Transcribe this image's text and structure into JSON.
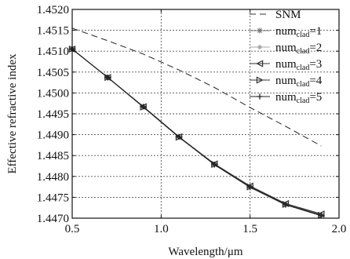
{
  "chart_data": {
    "type": "line",
    "title": "",
    "xlabel": "Wavelength/μm",
    "ylabel": "Effective refractive index",
    "xlim": [
      0.5,
      2.0
    ],
    "ylim": [
      1.447,
      1.452
    ],
    "xticks": [
      "0.5",
      "1.0",
      "1.5",
      "2.0"
    ],
    "yticks": [
      "1.4470",
      "1.4475",
      "1.4480",
      "1.4485",
      "1.4490",
      "1.4495",
      "1.4500",
      "1.4505",
      "1.4510",
      "1.4515",
      "1.4520"
    ],
    "xtick_values": [
      0.5,
      1.0,
      1.5,
      2.0
    ],
    "ytick_values": [
      1.447,
      1.4475,
      1.448,
      1.4485,
      1.449,
      1.4495,
      1.45,
      1.4505,
      1.451,
      1.4515,
      1.452
    ],
    "grid": "dotted",
    "legend_position": "top-right",
    "series": [
      {
        "name": "SNM",
        "label_main": "SNM",
        "label_sub": "",
        "label_tail": "",
        "style": "dashed",
        "marker": "none",
        "color": "#333333",
        "x": [
          0.5,
          0.7,
          0.9,
          1.1,
          1.3,
          1.5,
          1.7,
          1.9
        ],
        "y": [
          1.45155,
          1.45125,
          1.45093,
          1.45055,
          1.45013,
          1.44965,
          1.4492,
          1.44873
        ]
      },
      {
        "name": "num_clad=1",
        "label_main": "num",
        "label_sub": "clad",
        "label_tail": "=1",
        "style": "solid",
        "marker": "star",
        "color": "#777777",
        "x": [
          0.5,
          0.7,
          0.9,
          1.1,
          1.3,
          1.5,
          1.7,
          1.9
        ],
        "y": [
          1.45105,
          1.45037,
          1.44967,
          1.44895,
          1.44829,
          1.44775,
          1.44733,
          1.44707
        ]
      },
      {
        "name": "num_clad=2",
        "label_main": "num",
        "label_sub": "clad",
        "label_tail": "=2",
        "style": "solid",
        "marker": "dot",
        "color": "#aaaaaa",
        "x": [
          0.5,
          0.7,
          0.9,
          1.1,
          1.3,
          1.5,
          1.7,
          1.9
        ],
        "y": [
          1.45105,
          1.45037,
          1.44966,
          1.44894,
          1.44829,
          1.44776,
          1.44734,
          1.44708
        ]
      },
      {
        "name": "num_clad=3",
        "label_main": "num",
        "label_sub": "clad",
        "label_tail": "=3",
        "style": "solid",
        "marker": "triangle-left",
        "color": "#333333",
        "x": [
          0.5,
          0.7,
          0.9,
          1.1,
          1.3,
          1.5,
          1.7,
          1.9
        ],
        "y": [
          1.45105,
          1.45037,
          1.44967,
          1.44895,
          1.4483,
          1.44777,
          1.44735,
          1.4471
        ]
      },
      {
        "name": "num_clad=4",
        "label_main": "num",
        "label_sub": "clad",
        "label_tail": "=4",
        "style": "solid",
        "marker": "triangle-right",
        "color": "#333333",
        "x": [
          0.5,
          0.7,
          0.9,
          1.1,
          1.3,
          1.5,
          1.7,
          1.9
        ],
        "y": [
          1.45105,
          1.45037,
          1.44966,
          1.44894,
          1.44829,
          1.44775,
          1.44733,
          1.44707
        ]
      },
      {
        "name": "num_clad=5",
        "label_main": "num",
        "label_sub": "clad",
        "label_tail": "=5",
        "style": "solid",
        "marker": "plus",
        "color": "#222222",
        "x": [
          0.5,
          0.7,
          0.9,
          1.1,
          1.3,
          1.5,
          1.7,
          1.9
        ],
        "y": [
          1.45105,
          1.45037,
          1.44967,
          1.44895,
          1.44828,
          1.44774,
          1.44732,
          1.44706
        ]
      }
    ]
  }
}
